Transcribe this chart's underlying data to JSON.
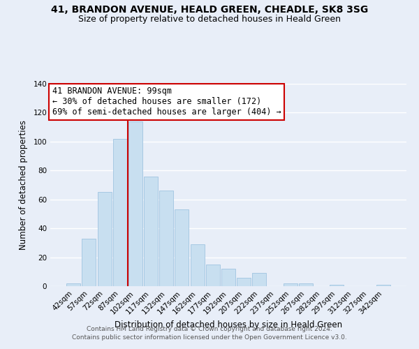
{
  "title": "41, BRANDON AVENUE, HEALD GREEN, CHEADLE, SK8 3SG",
  "subtitle": "Size of property relative to detached houses in Heald Green",
  "xlabel": "Distribution of detached houses by size in Heald Green",
  "ylabel": "Number of detached properties",
  "bar_labels": [
    "42sqm",
    "57sqm",
    "72sqm",
    "87sqm",
    "102sqm",
    "117sqm",
    "132sqm",
    "147sqm",
    "162sqm",
    "177sqm",
    "192sqm",
    "207sqm",
    "222sqm",
    "237sqm",
    "252sqm",
    "267sqm",
    "282sqm",
    "297sqm",
    "312sqm",
    "327sqm",
    "342sqm"
  ],
  "bar_values": [
    2,
    33,
    65,
    102,
    114,
    76,
    66,
    53,
    29,
    15,
    12,
    6,
    9,
    0,
    2,
    2,
    0,
    1,
    0,
    0,
    1
  ],
  "bar_color": "#c8dff0",
  "bar_edge_color": "#a0c4e0",
  "highlight_line_color": "#cc0000",
  "highlight_line_index": 4,
  "ylim": [
    0,
    140
  ],
  "yticks": [
    0,
    20,
    40,
    60,
    80,
    100,
    120,
    140
  ],
  "annotation_line1": "41 BRANDON AVENUE: 99sqm",
  "annotation_line2": "← 30% of detached houses are smaller (172)",
  "annotation_line3": "69% of semi-detached houses are larger (404) →",
  "annotation_box_edge_color": "#cc0000",
  "annotation_box_bg": "#ffffff",
  "footer_line1": "Contains HM Land Registry data © Crown copyright and database right 2024.",
  "footer_line2": "Contains public sector information licensed under the Open Government Licence v3.0.",
  "background_color": "#e8eef8",
  "plot_bg_color": "#e8eef8",
  "grid_color": "#ffffff",
  "title_fontsize": 10,
  "subtitle_fontsize": 9,
  "axis_label_fontsize": 8.5,
  "tick_fontsize": 7.5,
  "annotation_fontsize": 8.5,
  "footer_fontsize": 6.5
}
